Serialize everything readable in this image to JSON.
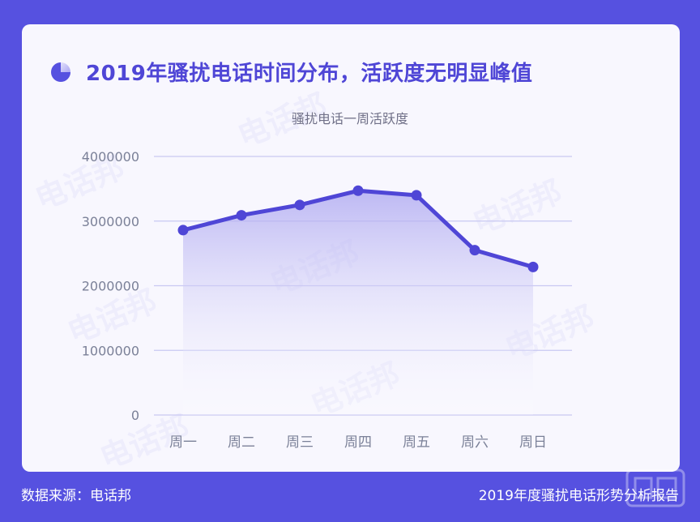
{
  "title": "2019年骚扰电话时间分布，活跃度无明显峰值",
  "footer": {
    "source": "数据来源：电话邦",
    "report": "2019年度骚扰电话形势分析报告"
  },
  "watermark": "电话邦",
  "colors": {
    "background": "#5651e0",
    "card": "#f8f7fe",
    "line": "#4f46d6",
    "grid": "#c9c8f2",
    "axis_text": "#7b8198"
  },
  "chart_data": {
    "type": "area",
    "title": "骚扰电话一周活跃度",
    "categories": [
      "周一",
      "周二",
      "周三",
      "周四",
      "周五",
      "周六",
      "周日"
    ],
    "values": [
      2860000,
      3090000,
      3250000,
      3470000,
      3400000,
      2550000,
      2290000
    ],
    "yticks": [
      "4000000",
      "3000000",
      "2000000",
      "1000000",
      "0"
    ],
    "ylim": [
      0,
      4000000
    ],
    "grid": true,
    "legend": "none"
  }
}
